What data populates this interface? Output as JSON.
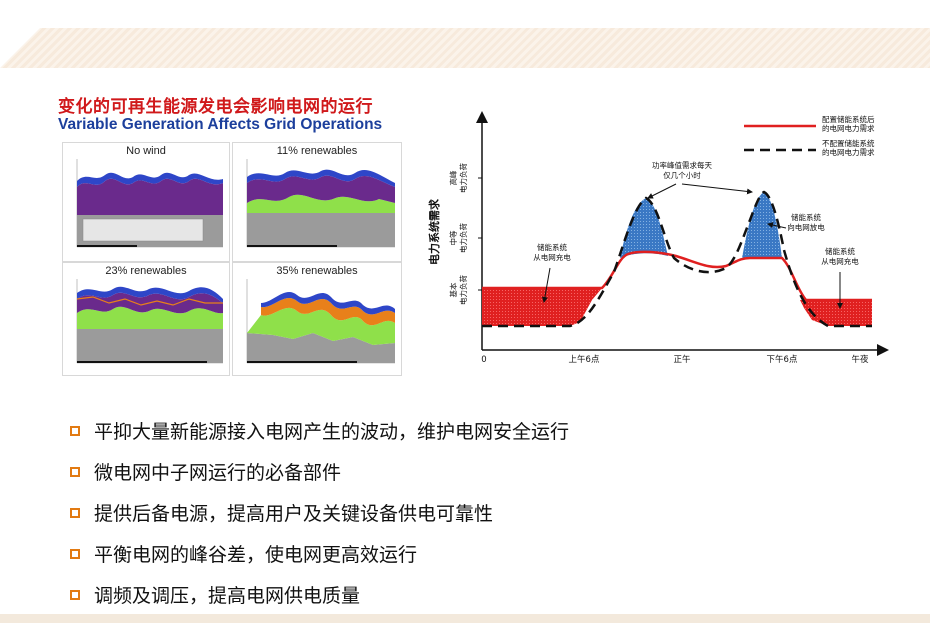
{
  "slide": {
    "title_cn": "变化的可再生能源发电会影响电网的运行",
    "title_en": "Variable Generation Affects Grid Operations"
  },
  "panels": [
    {
      "title": "No wind"
    },
    {
      "title": "11% renewables"
    },
    {
      "title": "23% renewables"
    },
    {
      "title": "35% renewables"
    }
  ],
  "load_chart": {
    "y_axis_label": "电力系统需求",
    "y_levels": [
      "高峰\n电力负荷",
      "中等\n电力负荷",
      "基本\n电力负荷"
    ],
    "x_ticks": [
      "0",
      "上午6点",
      "正午",
      "下午6点",
      "午夜"
    ],
    "legend": [
      {
        "label": "配置储能系统后\n的电网电力需求",
        "color": "#e02020",
        "style": "solid"
      },
      {
        "label": "不配置储能系统\n的电网电力需求",
        "color": "#111111",
        "style": "dashed"
      }
    ],
    "annotations": {
      "peak_note": "功率峰值需求每天\n仅几个小时",
      "discharge": "储能系统\n向电网放电",
      "charge_left": "储能系统\n从电网充电",
      "charge_right": "储能系统\n从电网充电"
    },
    "colors": {
      "charge_fill": "#e02020",
      "discharge_fill": "#3a78c4"
    }
  },
  "bullets": [
    "平抑大量新能源接入电网产生的波动，维护电网安全运行",
    "微电网中子网运行的必备部件",
    "提供后备电源，提高用户及关键设备供电可靠性",
    "平衡电网的峰谷差，使电网更高效运行",
    "调频及调压，提高电网供电质量"
  ],
  "colors": {
    "title_cn": "#d0191b",
    "title_en": "#1c3f9c",
    "bullet_marker": "#e27a12"
  }
}
